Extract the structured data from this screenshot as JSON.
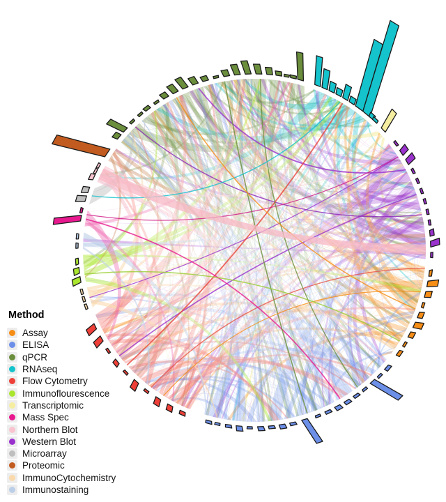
{
  "figure": {
    "background": "#FFFFFF"
  },
  "legend": {
    "title": "Method",
    "items": [
      {
        "label": "Assay",
        "color": "#F68D15"
      },
      {
        "label": "ELISA",
        "color": "#6C8FE8"
      },
      {
        "label": "qPCR",
        "color": "#6B8E3D"
      },
      {
        "label": "RNAseq",
        "color": "#14C3CC"
      },
      {
        "label": "Flow Cytometry",
        "color": "#EE4038"
      },
      {
        "label": "Immunoflourescence",
        "color": "#ABE62E"
      },
      {
        "label": "Transcriptomic",
        "color": "#F5EDA0"
      },
      {
        "label": "Mass Spec",
        "color": "#E8188E"
      },
      {
        "label": "Northern Blot",
        "color": "#F9C4CF"
      },
      {
        "label": "Western Blot",
        "color": "#9A32CD"
      },
      {
        "label": "Microarray",
        "color": "#BFBFBF"
      },
      {
        "label": "Proteomic",
        "color": "#C25B1F"
      },
      {
        "label": "ImmunoCytochemistry",
        "color": "#FAD9AC"
      },
      {
        "label": "Immunostaining",
        "color": "#BCCFE8"
      }
    ]
  },
  "chart_data": {
    "type": "chord",
    "title": "",
    "description": "Chord diagram linking experimental methods; each sector has an outer dashed baseline with a radial mini-barplot (bar lengths in px, no numeric axis shown).",
    "angle_convention": "degrees clockwise from 12 o'clock",
    "bar_units": "pixels beyond baseline ring (axis unlabeled)",
    "sectors": [
      {
        "name": "qPCR",
        "color": "#6B8E3D",
        "arc_deg": [
          309,
          377
        ],
        "ribbon_opacity": 0.3,
        "bars": [
          [
            310,
            8
          ],
          [
            313,
            26
          ],
          [
            316.5,
            0
          ],
          [
            320,
            0
          ],
          [
            323,
            5
          ],
          [
            326.5,
            0
          ],
          [
            330,
            8
          ],
          [
            333.5,
            13
          ],
          [
            337,
            17
          ],
          [
            340.5,
            11
          ],
          [
            344,
            7
          ],
          [
            347.5,
            0
          ],
          [
            351,
            9
          ],
          [
            354.5,
            15
          ],
          [
            358,
            19
          ],
          [
            361.5,
            14
          ],
          [
            365,
            10
          ],
          [
            368,
            6
          ],
          [
            370.5,
            0
          ],
          [
            372.8,
            4
          ],
          [
            375.2,
            38
          ]
        ]
      },
      {
        "name": "RNAseq",
        "color": "#14C3CC",
        "arc_deg": [
          20,
          43
        ],
        "ribbon_opacity": 0.34,
        "bars": [
          [
            21,
            40
          ],
          [
            23.5,
            26
          ],
          [
            26,
            13
          ],
          [
            28.5,
            9
          ],
          [
            31,
            19
          ],
          [
            33.5,
            8
          ],
          [
            36.5,
            95
          ],
          [
            39.5,
            130
          ],
          [
            41.5,
            6
          ],
          [
            43,
            4
          ]
        ]
      },
      {
        "name": "Transcriptomic",
        "color": "#F5EDA0",
        "arc_deg": [
          45,
          49.5
        ],
        "ribbon_opacity": 0.55,
        "bars": [
          [
            47,
            30
          ]
        ]
      },
      {
        "name": "Western Blot",
        "color": "#9A32CD",
        "arc_deg": [
          51.5,
          93
        ],
        "ribbon_opacity": 0.32,
        "bars": [
          [
            53,
            0
          ],
          [
            56.5,
            11
          ],
          [
            60,
            13
          ],
          [
            63.5,
            0
          ],
          [
            67,
            0
          ],
          [
            70.5,
            0
          ],
          [
            74,
            0
          ],
          [
            77.5,
            0
          ],
          [
            81,
            0
          ],
          [
            84.5,
            6
          ],
          [
            88,
            13
          ],
          [
            91.5,
            0
          ]
        ]
      },
      {
        "name": "Assay",
        "color": "#F68D15",
        "arc_deg": [
          95.5,
          127
        ],
        "ribbon_opacity": 0.32,
        "bars": [
          [
            97.5,
            4
          ],
          [
            101,
            15
          ],
          [
            104.5,
            9
          ],
          [
            108,
            0
          ],
          [
            111.5,
            7
          ],
          [
            115,
            12
          ],
          [
            118.5,
            7
          ],
          [
            122,
            0
          ],
          [
            125.5,
            5
          ]
        ]
      },
      {
        "name": "ELISA",
        "color": "#6C8FE8",
        "arc_deg": [
          129.5,
          197
        ],
        "ribbon_opacity": 0.28,
        "bars": [
          [
            131.5,
            5
          ],
          [
            135,
            0
          ],
          [
            138,
            45
          ],
          [
            141.5,
            0
          ],
          [
            145,
            4
          ],
          [
            148.5,
            5
          ],
          [
            152,
            6
          ],
          [
            155.5,
            4
          ],
          [
            159,
            0
          ],
          [
            163.5,
            38
          ],
          [
            167.5,
            4
          ],
          [
            171,
            6
          ],
          [
            174.5,
            4
          ],
          [
            178,
            6
          ],
          [
            181.5,
            0
          ],
          [
            185,
            7
          ],
          [
            188.5,
            4
          ],
          [
            192,
            0
          ],
          [
            195,
            4
          ]
        ]
      },
      {
        "name": "Flow Cytometry",
        "color": "#EE4038",
        "ribbon_color": "#F47A72",
        "arc_deg": [
          202,
          248
        ],
        "ribbon_opacity": 0.38,
        "bars": [
          [
            204,
            5
          ],
          [
            208.5,
            8
          ],
          [
            213,
            10
          ],
          [
            217.5,
            0
          ],
          [
            222,
            12
          ],
          [
            226.5,
            0
          ],
          [
            231,
            6
          ],
          [
            235.5,
            0
          ],
          [
            240,
            13
          ],
          [
            244.5,
            14
          ]
        ]
      },
      {
        "name": "ImmunoCytochemistry",
        "color": "#FAD9AC",
        "arc_deg": [
          250.5,
          257.5
        ],
        "ribbon_opacity": 0.6,
        "bars": [
          [
            251.5,
            0
          ],
          [
            254,
            0
          ],
          [
            256.5,
            0
          ]
        ]
      },
      {
        "name": "Immunoflourescence",
        "color": "#ABE62E",
        "arc_deg": [
          259.5,
          268.5
        ],
        "ribbon_opacity": 0.45,
        "bars": [
          [
            260.5,
            12
          ],
          [
            263.5,
            8
          ],
          [
            266.5,
            4
          ]
        ]
      },
      {
        "name": "Immunostaining",
        "color": "#BCCFE8",
        "arc_deg": [
          270.5,
          276
        ],
        "ribbon_opacity": 0.6,
        "bars": [
          [
            271.5,
            0
          ],
          [
            274.5,
            0
          ]
        ]
      },
      {
        "name": "Mass Spec",
        "color": "#E8188E",
        "ribbon_color": "#EE63AE",
        "arc_deg": [
          278,
          283.5
        ],
        "ribbon_opacity": 0.42,
        "bars": [
          [
            280.5,
            38
          ],
          [
            283,
            0
          ]
        ]
      },
      {
        "name": "Microarray",
        "color": "#BFBFBF",
        "arc_deg": [
          285.5,
          291.5
        ],
        "ribbon_opacity": 0.48,
        "bars": [
          [
            287,
            13
          ],
          [
            290,
            9
          ]
        ]
      },
      {
        "name": "Northern Blot",
        "color": "#F9C4CF",
        "arc_deg": [
          293.5,
          299.5
        ],
        "ribbon_opacity": 0.62,
        "bars": [
          [
            294.5,
            6
          ],
          [
            296.5,
            0
          ],
          [
            298.5,
            0
          ]
        ]
      },
      {
        "name": "Proteomic",
        "color": "#C25B1F",
        "ribbon_color": "#D08A5A",
        "arc_deg": [
          301.5,
          306.5
        ],
        "ribbon_opacity": 0.4,
        "bars": [
          [
            303.5,
            75
          ]
        ]
      }
    ],
    "highlight_chords": [
      {
        "from": [
          62
        ],
        "to": [
          341
        ],
        "color": "#9A32CD",
        "width": 1.8
      },
      {
        "from": [
          71
        ],
        "to": [
          232
        ],
        "color": "#9A32CD",
        "width": 1.6
      },
      {
        "from": [
          78
        ],
        "to": [
          316
        ],
        "color": "#8B26B8",
        "width": 1.4
      },
      {
        "from": [
          57
        ],
        "to": [
          254
        ],
        "color": "#9A32CD",
        "width": 1.2
      },
      {
        "from": [
          228
        ],
        "to": [
          31
        ],
        "color": "#E8463C",
        "width": 1.8
      },
      {
        "from": [
          217
        ],
        "to": [
          96
        ],
        "color": "#E8554A",
        "width": 1.4
      },
      {
        "from": [
          280.5
        ],
        "to": [
          150
        ],
        "color": "#E8188E",
        "width": 1.6
      },
      {
        "from": [
          282
        ],
        "to": [
          57
        ],
        "color": "#D01585",
        "width": 1.2
      },
      {
        "from": [
          350
        ],
        "to": [
          162
        ],
        "color": "#6B8E3D",
        "width": 1.6
      },
      {
        "from": [
          2
        ],
        "to": [
          143
        ],
        "color": "#6B8E3D",
        "width": 1.4
      },
      {
        "from": [
          30
        ],
        "to": [
          288.5
        ],
        "color": "#14C3CC",
        "width": 1.4
      },
      {
        "from": [
          110
        ],
        "to": [
          333
        ],
        "color": "#F68D15",
        "width": 1.5
      },
      {
        "from": [
          104
        ],
        "to": [
          212
        ],
        "color": "#F68D15",
        "width": 1.2
      },
      {
        "from": [
          262
        ],
        "to": [
          122
        ],
        "color": "#9ACD32",
        "width": 1.5
      },
      {
        "from": [
          294.5,
          298.5
        ],
        "to": [
          88,
          91.5
        ],
        "color": "#F7B8C4",
        "fill": true
      }
    ],
    "texture": {
      "ribbon_slice_deg": 1.15,
      "hairline_count": 230,
      "seed": 1337
    }
  }
}
